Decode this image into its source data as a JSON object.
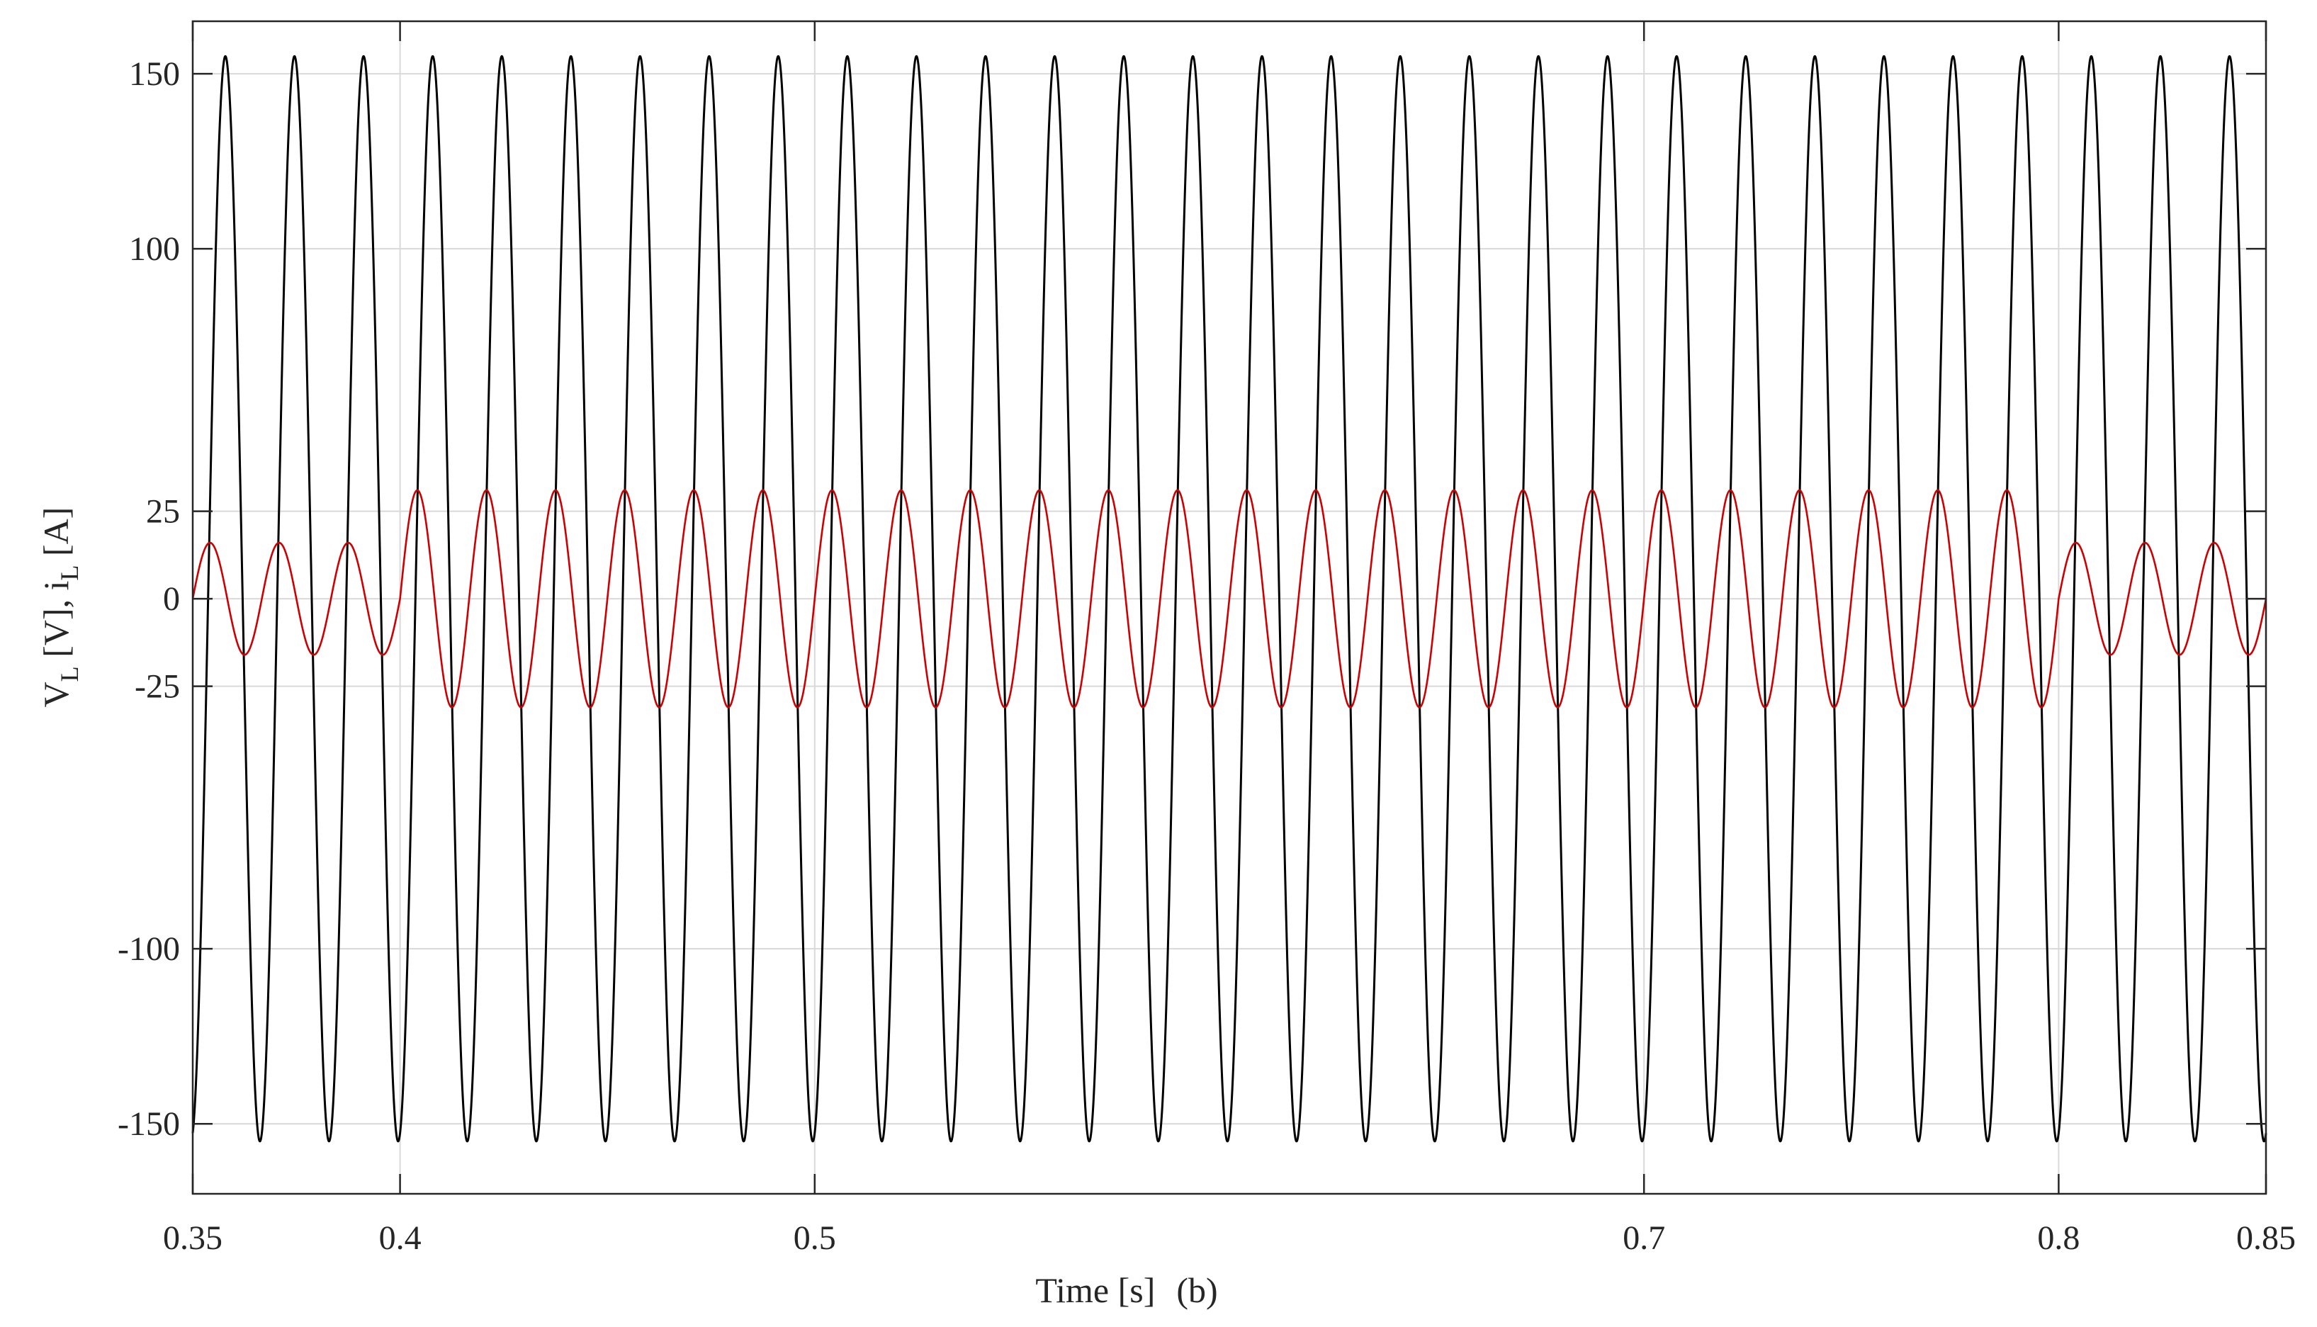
{
  "chart_data": {
    "type": "line",
    "xlabel": "Time [s]",
    "caption": "(b)",
    "ylabel": {
      "v": "V",
      "v_sub": "L",
      "v_unit": " [V], ",
      "i": "i",
      "i_sub": "L",
      "i_unit": " [A]"
    },
    "xlim": [
      0.35,
      0.85
    ],
    "ylim": [
      -170,
      165
    ],
    "x_ticks": [
      {
        "value": 0.35,
        "label": "0.35"
      },
      {
        "value": 0.4,
        "label": "0.4"
      },
      {
        "value": 0.5,
        "label": "0.5"
      },
      {
        "value": 0.7,
        "label": "0.7"
      },
      {
        "value": 0.8,
        "label": "0.8"
      },
      {
        "value": 0.85,
        "label": "0.85"
      }
    ],
    "y_ticks": [
      {
        "value": 150,
        "label": "150"
      },
      {
        "value": 100,
        "label": "100"
      },
      {
        "value": 25,
        "label": "25"
      },
      {
        "value": 0,
        "label": "0"
      },
      {
        "value": -25,
        "label": "-25"
      },
      {
        "value": -100,
        "label": "-100"
      },
      {
        "value": -150,
        "label": "-150"
      }
    ],
    "grid": true,
    "frequency_hz": 60,
    "series": [
      {
        "color": "#000000",
        "amplitude": 155,
        "phase_deg": -80
      },
      {
        "color": "#cc0000",
        "phase_deg": 0,
        "amplitude_segments": [
          {
            "x": [
              0.35,
              0.4
            ],
            "amplitude": 16
          },
          {
            "x": [
              0.4,
              0.8
            ],
            "amplitude": 31
          },
          {
            "x": [
              0.8,
              0.85
            ],
            "amplitude": 16
          }
        ]
      }
    ]
  }
}
